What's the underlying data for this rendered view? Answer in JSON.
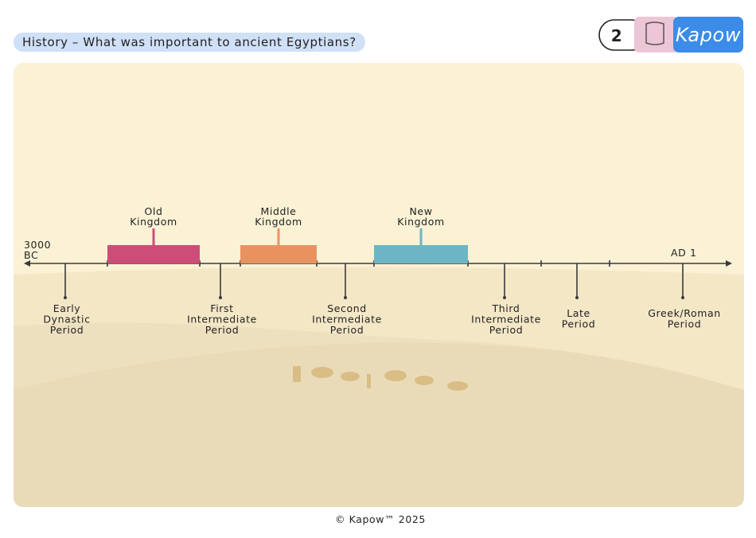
{
  "header": {
    "title": "History – What was important to ancient Egyptians?",
    "lesson": "2",
    "logo": "Kapow"
  },
  "timeline": {
    "start": [
      "3000",
      "BC"
    ],
    "end": "AD 1",
    "kingdoms": [
      [
        "Old",
        "Kingdom"
      ],
      [
        "Middle",
        "Kingdom"
      ],
      [
        "New",
        "Kingdom"
      ]
    ],
    "periods": [
      [
        "Early",
        "Dynastic",
        "Period"
      ],
      [
        "First",
        "Intermediate",
        "Period"
      ],
      [
        "Second",
        "Intermediate",
        "Period"
      ],
      [
        "Third",
        "Intermediate",
        "Period"
      ],
      [
        "Late",
        "Period"
      ],
      [
        "Greek/Roman",
        "Period"
      ]
    ]
  },
  "footer": "© Kapow™ 2025"
}
